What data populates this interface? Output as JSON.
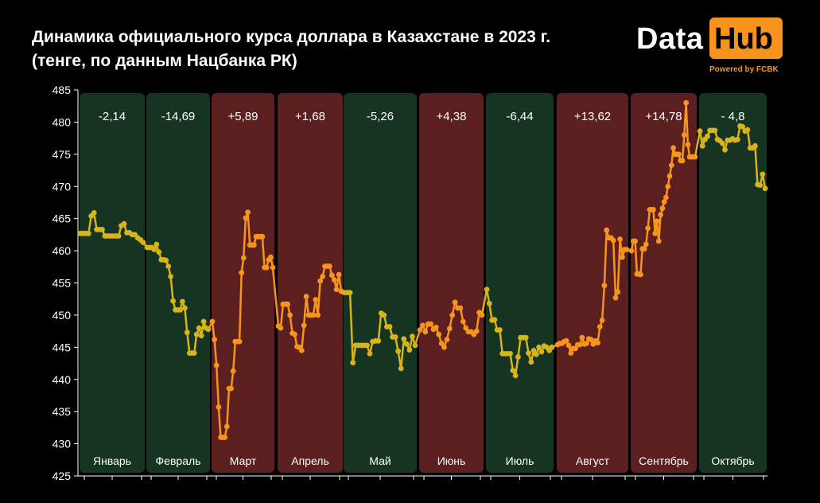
{
  "header": {
    "title_line1": "Динамика официального курса доллара в Казахстане в 2023 г.",
    "title_line2": "(тенге, по данным Нацбанка РК)"
  },
  "logo": {
    "word1": "Data",
    "word2": "Hub",
    "powered": "Powered by FCBK"
  },
  "colors": {
    "up_panel": "#5a1f1e",
    "down_panel": "#153522",
    "up_line": "#f7941d",
    "down_line": "#d8b41c"
  },
  "chart_data": {
    "type": "line",
    "title": "Динамика официального курса доллара в Казахстане в 2023 г.",
    "subtitle": "(тенге, по данным Нацбанка РК)",
    "ylim": [
      425,
      485
    ],
    "yticks": [
      425,
      430,
      435,
      440,
      445,
      450,
      455,
      460,
      465,
      470,
      475,
      480,
      485
    ],
    "months": [
      {
        "name": "Январь",
        "change": "-2,14",
        "trend": "down"
      },
      {
        "name": "Февраль",
        "change": "-14,69",
        "trend": "down"
      },
      {
        "name": "Март",
        "change": "+5,89",
        "trend": "up"
      },
      {
        "name": "Апрель",
        "change": "+1,68",
        "trend": "up"
      },
      {
        "name": "Май",
        "change": "-5,26",
        "trend": "down"
      },
      {
        "name": "Июнь",
        "change": "+4,38",
        "trend": "up"
      },
      {
        "name": "Июль",
        "change": "-6,44",
        "trend": "down"
      },
      {
        "name": "Август",
        "change": "+13,62",
        "trend": "up"
      },
      {
        "name": "Сентябрь",
        "change": "+14,78",
        "trend": "up"
      },
      {
        "name": "Октябрь",
        "change": "- 4,8",
        "trend": "down"
      }
    ],
    "series": [
      {
        "month": 0,
        "values": [
          462.7,
          462.7,
          462.7,
          462.7,
          465.4,
          465.9,
          463.3,
          463.3,
          463.3,
          462.3,
          462.3,
          462.3,
          462.3,
          462.3,
          462.3,
          463.9,
          464.2,
          462.8,
          462.8,
          462.5,
          462.5,
          462.0,
          461.7,
          461.3
        ]
      },
      {
        "month": 1,
        "values": [
          460.5,
          460.5,
          460.5,
          460.2,
          461.0,
          459.8,
          458.6,
          458.6,
          458.5,
          457.6,
          456.0,
          452.2,
          450.8,
          450.8,
          450.8,
          452.1,
          451.1,
          447.3,
          444.1,
          444.1,
          444.1,
          447.0,
          448.0,
          446.8,
          449.0,
          448.0,
          447.8
        ]
      },
      {
        "month": 2,
        "values": [
          449.0,
          446.2,
          442.2,
          435.7,
          431.0,
          431.0,
          431.0,
          432.7,
          438.6,
          438.6,
          441.3,
          445.9,
          445.9,
          445.9,
          456.6,
          458.9,
          465.1,
          466.0,
          460.9,
          460.9,
          460.9,
          462.2,
          462.2,
          462.2,
          462.2,
          457.4,
          457.4,
          458.6,
          459.0,
          457.4
        ]
      },
      {
        "month": 3,
        "values": [
          448.3,
          448.0,
          451.7,
          451.7,
          451.7,
          450.0,
          447.2,
          447.0,
          445.1,
          445.0,
          444.5,
          448.4,
          452.9,
          450.0,
          450.0,
          450.0,
          452.4,
          450.0,
          455.3,
          456.0,
          457.6,
          457.6,
          457.6,
          456.2,
          455.5,
          454.0,
          456.3,
          453.7
        ]
      },
      {
        "month": 4,
        "values": [
          453.5,
          453.5,
          453.5,
          442.6,
          445.3,
          445.3,
          445.3,
          445.3,
          445.3,
          444.0,
          445.9,
          446.0,
          446.0,
          450.3,
          450.0,
          448.2,
          448.2,
          446.6,
          446.6,
          444.4,
          441.7,
          446.3,
          445.5,
          444.6,
          446.7,
          445.3
        ]
      },
      {
        "month": 5,
        "values": [
          447.7,
          448.4,
          447.4,
          448.6,
          448.6,
          447.8,
          448.1,
          447.0,
          445.6,
          445.0,
          446.2,
          447.9,
          450.0,
          452.0,
          451.1,
          451.1,
          449.0,
          448.0,
          447.4,
          447.4,
          447.0,
          447.5,
          450.4,
          450.0
        ]
      },
      {
        "month": 6,
        "values": [
          454.0,
          451.8,
          449.2,
          449.3,
          447.7,
          447.7,
          444.0,
          444.0,
          444.0,
          444.0,
          441.4,
          440.6,
          443.5,
          446.5,
          446.5,
          446.5,
          444.1,
          442.7,
          444.5,
          443.9,
          445.0,
          444.3,
          445.2,
          445.0,
          444.5,
          445.0
        ]
      },
      {
        "month": 7,
        "values": [
          445.4,
          445.6,
          445.6,
          445.9,
          446.0,
          445.3,
          444.1,
          444.8,
          444.8,
          445.4,
          445.4,
          446.5,
          445.5,
          445.6,
          446.3,
          446.2,
          445.5,
          446.0,
          445.7,
          448.2,
          449.2,
          454.6,
          463.2,
          462.0,
          462.0,
          461.6,
          452.7,
          453.6,
          461.8,
          459.0,
          460.2,
          460.2
        ]
      },
      {
        "month": 8,
        "values": [
          460.0,
          461.5,
          461.5,
          456.4,
          456.4,
          456.3,
          460.3,
          460.3,
          461.0,
          463.5,
          466.4,
          466.4,
          466.4,
          462.7,
          464.6,
          461.5,
          465.6,
          466.6,
          467.6,
          468.3,
          470.0,
          471.6,
          473.3,
          476.0,
          475.0,
          475.0,
          475.0,
          474.0,
          474.0,
          478.0,
          483.0,
          476.5,
          474.6,
          474.6,
          474.6,
          474.6
        ]
      },
      {
        "month": 9,
        "values": [
          478.6,
          476.3,
          477.3,
          477.8,
          478.7,
          478.7,
          478.7,
          477.3,
          477.1,
          476.7,
          475.7,
          477.2,
          477.2,
          477.4,
          477.2,
          477.3,
          479.4,
          479.3,
          478.6,
          478.8,
          476.0,
          476.0,
          476.3,
          470.3,
          470.2,
          471.9,
          469.7
        ]
      }
    ]
  }
}
